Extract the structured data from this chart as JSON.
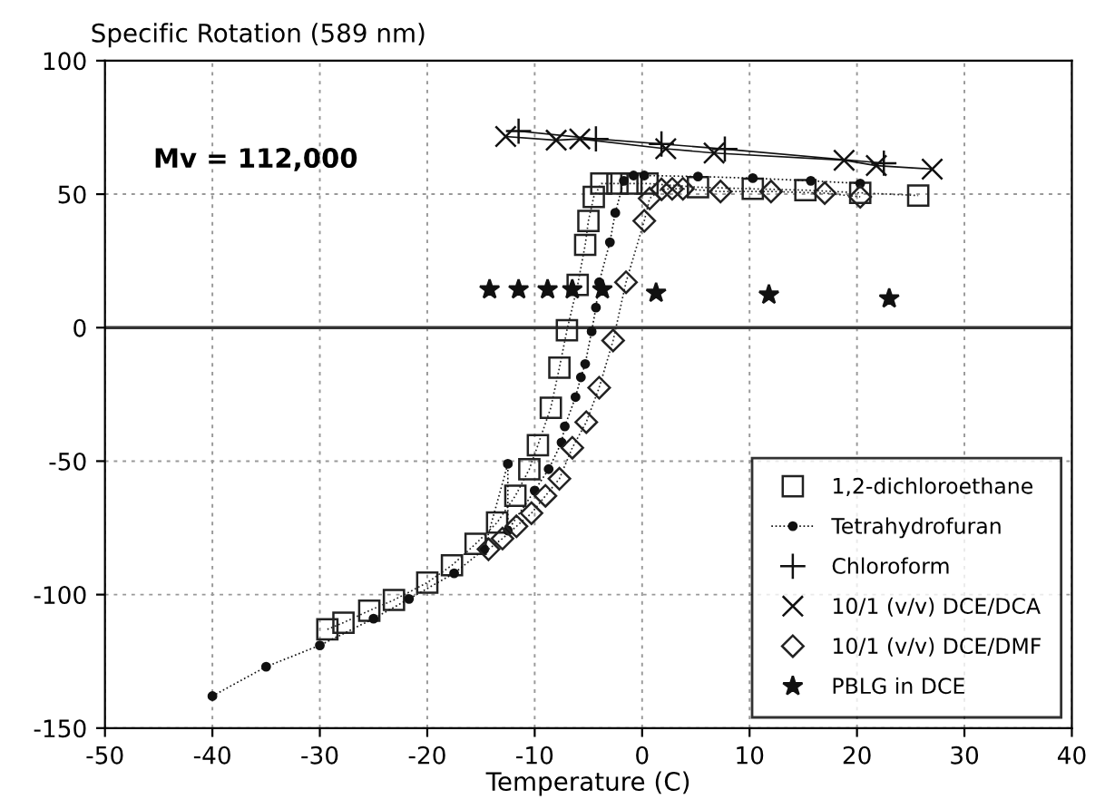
{
  "chart_data": {
    "type": "line",
    "ylabel": "Specific Rotation (589 nm)",
    "xlabel": "Temperature (C)",
    "xlim": [
      -50,
      40
    ],
    "xticks": [
      -50,
      -40,
      -30,
      -20,
      -10,
      0,
      10,
      20,
      30,
      40
    ],
    "ylim": [
      -150,
      100
    ],
    "yticks": [
      -150,
      -100,
      -50,
      0,
      50,
      100
    ],
    "grid": true,
    "legend": "bottom right",
    "line_style": "dotted",
    "ref_lines": [
      {
        "axis": "y",
        "value": 0,
        "label": null,
        "color": "#333333",
        "line_style": "solid"
      }
    ],
    "annotations": [
      "Mv = 112,000"
    ],
    "series": [
      {
        "name": "1,2-dichloroethane",
        "color": "#222222",
        "marker": "square",
        "x": [
          -29.3,
          -27.8,
          -25.4,
          -23.1,
          -20,
          -17.7,
          -15.5,
          -13.5,
          -11.8,
          -10.5,
          -9.7,
          -8.5,
          -7.7,
          -7,
          -6,
          -5.3,
          -5,
          -4.5,
          -3.8,
          -2.3,
          -1,
          0.5,
          5.2,
          10.3,
          15.2,
          20.3,
          25.7
        ],
        "values": [
          -113,
          -110.5,
          -106,
          -102,
          -95.5,
          -89,
          -81,
          -73,
          -63,
          -53,
          -44,
          -30,
          -15,
          -1,
          16,
          31,
          40,
          49,
          54,
          54,
          54,
          54,
          52.6,
          52,
          51.5,
          50.5,
          49.5
        ]
      },
      {
        "name": "Tetrahydrofuran",
        "color": "#111111",
        "marker": "circle",
        "x": [
          -40,
          -35,
          -30,
          -25,
          -21.7,
          -17.5,
          -14.7,
          -12.5,
          -12.5,
          -10,
          -8.7,
          -7.5,
          -7.2,
          -6.2,
          -5.7,
          -5.3,
          -4.7,
          -4.3,
          -4,
          -3,
          -2.5,
          -1.7,
          -0.8,
          0.2,
          5.2,
          10.3,
          15.7,
          20.3
        ],
        "values": [
          -138,
          -127,
          -119,
          -109,
          -101.6,
          -92,
          -83,
          -51,
          -76,
          -61,
          -53,
          -43,
          -37,
          -26,
          -18.6,
          -13.6,
          -1.4,
          7.5,
          17,
          32,
          43,
          55,
          57,
          57,
          56.6,
          56,
          55,
          54
        ]
      },
      {
        "name": "Chloroform",
        "color": "#111111",
        "marker": "plus",
        "line_style": "solid",
        "x": [
          -11.5,
          -4.3,
          1.8,
          7.7,
          22.5
        ],
        "values": [
          73.6,
          70.7,
          68.8,
          66.9,
          61.6
        ]
      },
      {
        "name": "10/1 (v/v) DCE/DCA",
        "color": "#111111",
        "marker": "cross",
        "line_style": "solid",
        "x": [
          -12.7,
          -8,
          -5.8,
          2.2,
          6.7,
          18.8,
          21.8,
          27
        ],
        "values": [
          71.6,
          70.2,
          70.7,
          67,
          65.4,
          62.7,
          60.7,
          59.4
        ]
      },
      {
        "name": "10/1 (v/v) DCE/DMF",
        "color": "#222222",
        "marker": "diamond",
        "x": [
          -14.3,
          -13,
          -11.7,
          -10.3,
          -9,
          -7.7,
          -6.5,
          -5.2,
          -4,
          -2.7,
          -1.5,
          0.2,
          0.7,
          1.8,
          2.8,
          3.8,
          7.3,
          12,
          17,
          20.3
        ],
        "values": [
          -83,
          -79,
          -74.4,
          -69.5,
          -63,
          -56.6,
          -45,
          -35.4,
          -22.5,
          -4.8,
          17,
          40,
          48.4,
          51.8,
          52,
          52,
          51,
          51,
          50.4,
          49
        ]
      },
      {
        "name": "PBLG in DCE",
        "color": "#111111",
        "marker": "star",
        "type": "scatter",
        "x": [
          -14.2,
          -11.5,
          -8.8,
          -6.5,
          -3.7,
          1.3,
          11.8,
          23
        ],
        "values": [
          14.3,
          14.3,
          14.3,
          14.3,
          14.3,
          13,
          12.3,
          10.9
        ]
      }
    ]
  }
}
